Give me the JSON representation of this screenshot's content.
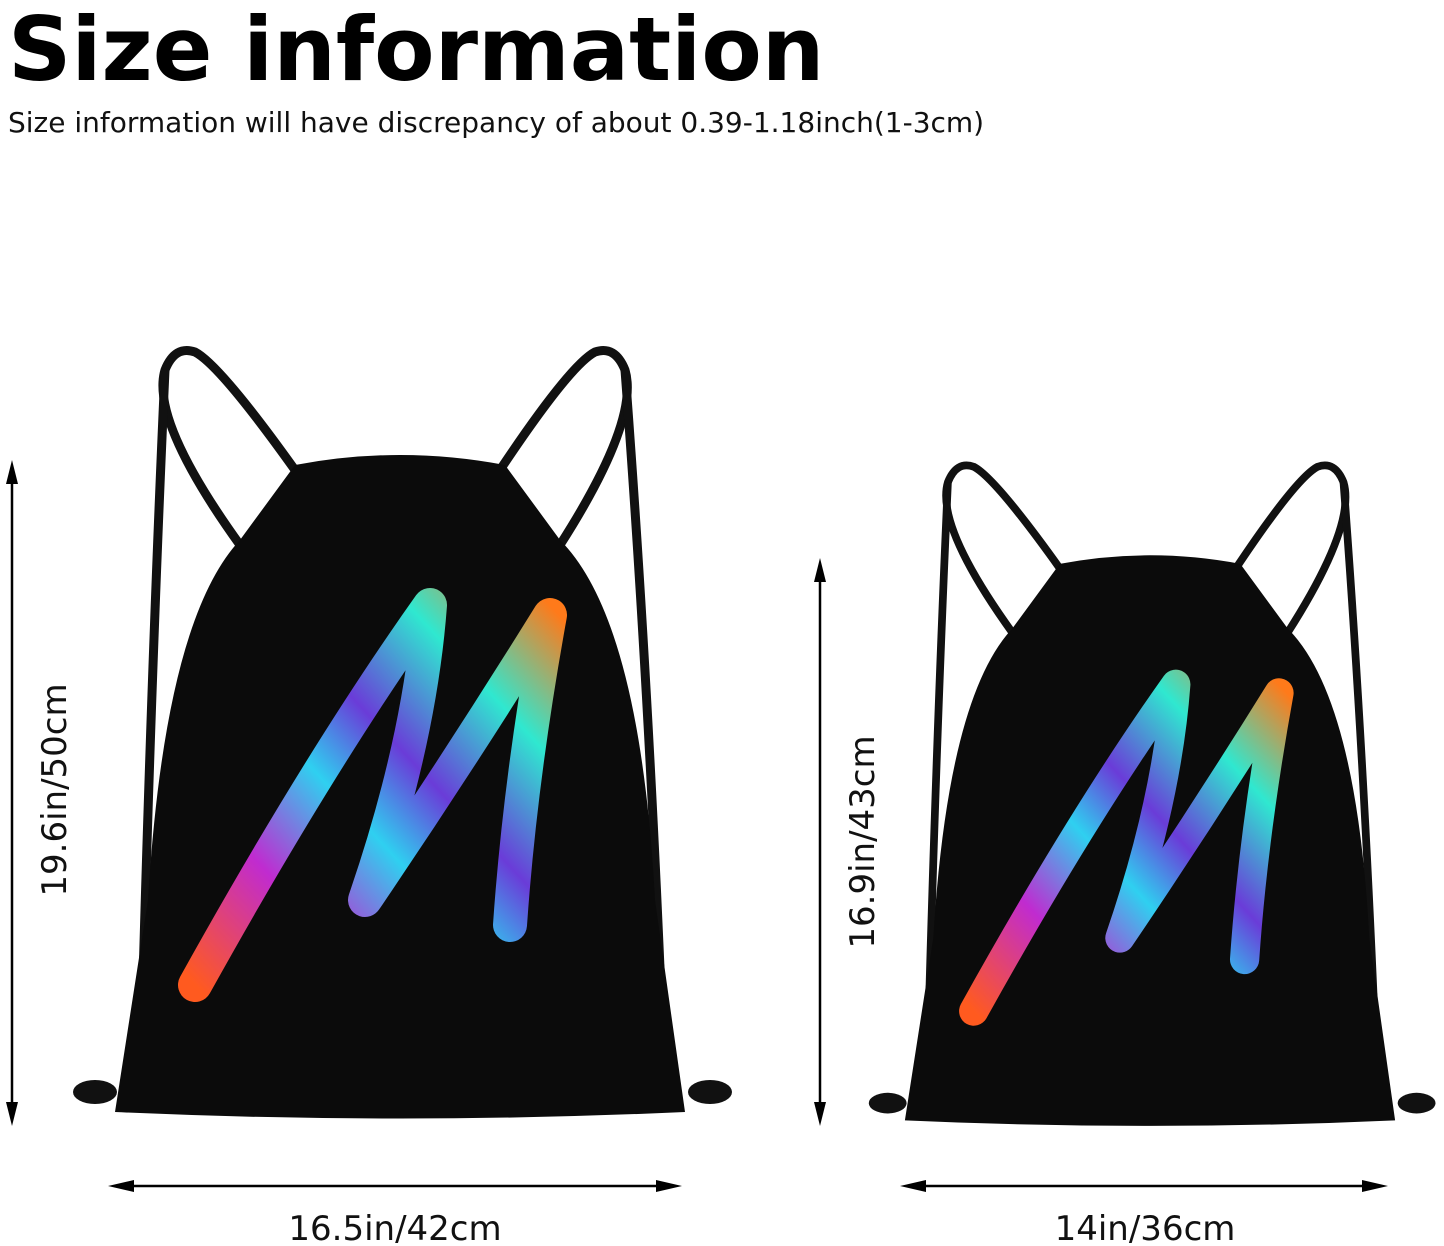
{
  "header": {
    "title": "Size information",
    "subtitle": "Size information will have discrepancy of about 0.39-1.18inch(1-3cm)"
  },
  "bags": [
    {
      "height_label": "19.6in/50cm",
      "width_label": "16.5in/42cm"
    },
    {
      "height_label": "16.9in/43cm",
      "width_label": "14in/36cm"
    }
  ]
}
